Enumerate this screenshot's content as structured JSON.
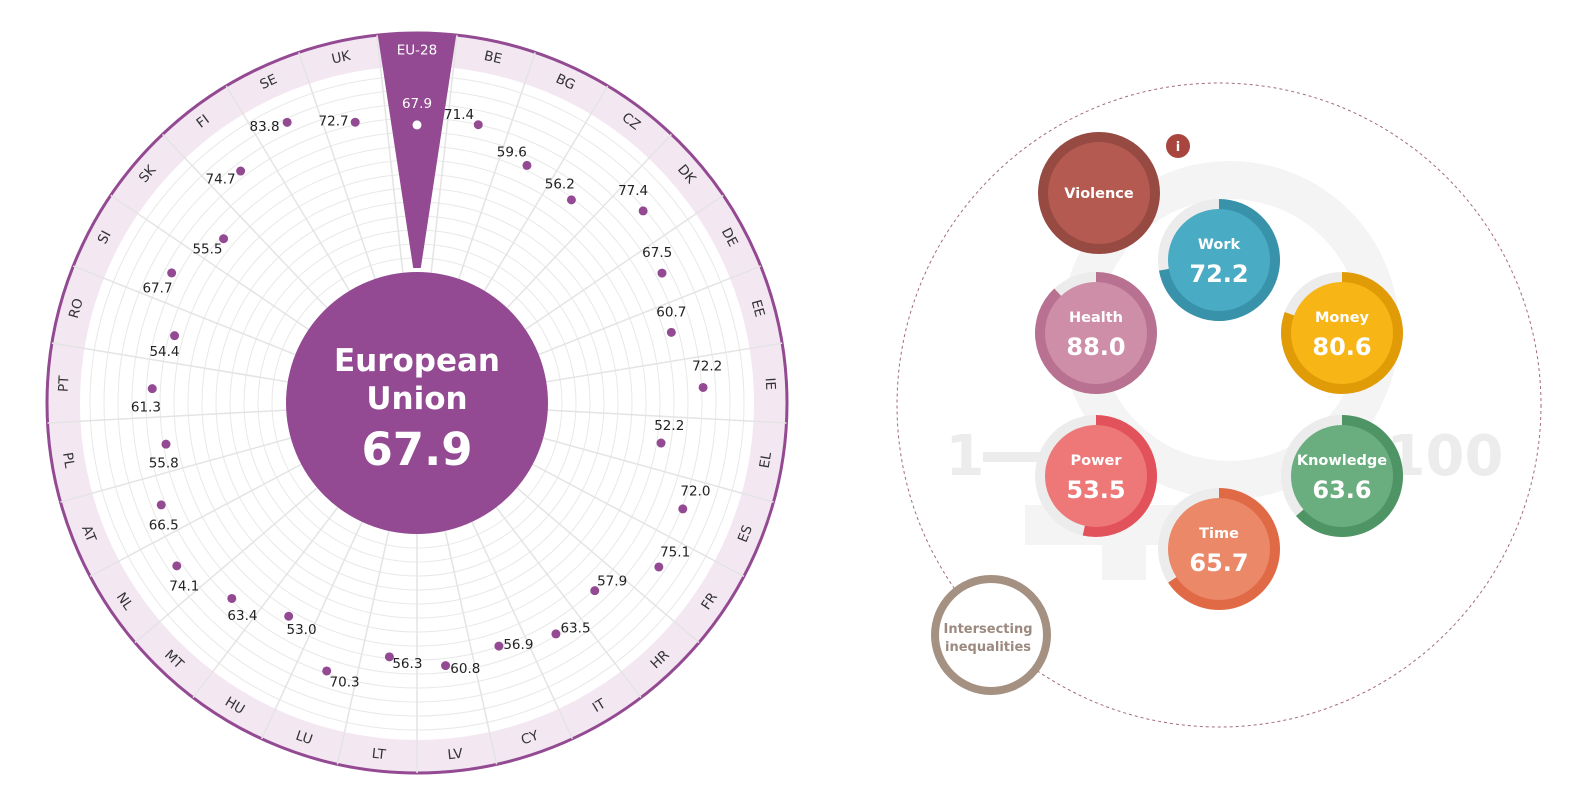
{
  "chart_data": {
    "type": "radial-bar",
    "scale": [
      1,
      100
    ],
    "highlight": {
      "label": "EU-28",
      "value": "67.9",
      "value_num": 67.9
    },
    "center": {
      "title_lines": [
        "European",
        "Union"
      ],
      "value": "67.9"
    },
    "countries": [
      {
        "code": "BE",
        "value": "71.4",
        "value_num": 71.4
      },
      {
        "code": "BG",
        "value": "59.6",
        "value_num": 59.6
      },
      {
        "code": "CZ",
        "value": "56.2",
        "value_num": 56.2
      },
      {
        "code": "DK",
        "value": "77.4",
        "value_num": 77.4
      },
      {
        "code": "DE",
        "value": "67.5",
        "value_num": 67.5
      },
      {
        "code": "EE",
        "value": "60.7",
        "value_num": 60.7
      },
      {
        "code": "IE",
        "value": "72.2",
        "value_num": 72.2
      },
      {
        "code": "EL",
        "value": "52.2",
        "value_num": 52.2
      },
      {
        "code": "ES",
        "value": "72.0",
        "value_num": 72.0
      },
      {
        "code": "FR",
        "value": "75.1",
        "value_num": 75.1
      },
      {
        "code": "HR",
        "value": "57.9",
        "value_num": 57.9
      },
      {
        "code": "IT",
        "value": "63.5",
        "value_num": 63.5
      },
      {
        "code": "CY",
        "value": "56.9",
        "value_num": 56.9
      },
      {
        "code": "LV",
        "value": "60.8",
        "value_num": 60.8
      },
      {
        "code": "LT",
        "value": "56.3",
        "value_num": 56.3
      },
      {
        "code": "LU",
        "value": "70.3",
        "value_num": 70.3
      },
      {
        "code": "HU",
        "value": "53.0",
        "value_num": 53.0
      },
      {
        "code": "MT",
        "value": "63.4",
        "value_num": 63.4
      },
      {
        "code": "NL",
        "value": "74.1",
        "value_num": 74.1
      },
      {
        "code": "AT",
        "value": "66.5",
        "value_num": 66.5
      },
      {
        "code": "PL",
        "value": "55.8",
        "value_num": 55.8
      },
      {
        "code": "PT",
        "value": "61.3",
        "value_num": 61.3
      },
      {
        "code": "RO",
        "value": "54.4",
        "value_num": 54.4
      },
      {
        "code": "SI",
        "value": "67.7",
        "value_num": 67.7
      },
      {
        "code": "SK",
        "value": "55.5",
        "value_num": 55.5
      },
      {
        "code": "FI",
        "value": "74.7",
        "value_num": 74.7
      },
      {
        "code": "SE",
        "value": "83.8",
        "value_num": 83.8
      },
      {
        "code": "UK",
        "value": "72.7",
        "value_num": 72.7
      }
    ],
    "domains": [
      {
        "key": "violence",
        "name": "Violence",
        "value": "",
        "value_num": null,
        "color": "#b45a50",
        "ring": "#974a42"
      },
      {
        "key": "work",
        "name": "Work",
        "value": "72.2",
        "value_num": 72.2,
        "color": "#4aabc4",
        "ring": "#3892aa"
      },
      {
        "key": "health",
        "name": "Health",
        "value": "88.0",
        "value_num": 88.0,
        "color": "#ce8ea8",
        "ring": "#b87190"
      },
      {
        "key": "money",
        "name": "Money",
        "value": "80.6",
        "value_num": 80.6,
        "color": "#f7b516",
        "ring": "#e09b06"
      },
      {
        "key": "power",
        "name": "Power",
        "value": "53.5",
        "value_num": 53.5,
        "color": "#ee7878",
        "ring": "#e2525a"
      },
      {
        "key": "knowledge",
        "name": "Knowledge",
        "value": "63.6",
        "value_num": 63.6,
        "color": "#6aad7e",
        "ring": "#4f9464"
      },
      {
        "key": "time",
        "name": "Time",
        "value": "65.7",
        "value_num": 65.7,
        "color": "#ea8868",
        "ring": "#e06a45"
      }
    ],
    "scale_min_label": "1",
    "scale_max_label": "100",
    "intersecting": [
      "Intersecting",
      "inequalities"
    ],
    "info_icon": "i"
  },
  "colors": {
    "accent": "#934a92",
    "ring_band": "#f3e7f2",
    "grid": "#e8e8e8",
    "dot": "#934a92",
    "intersecting_ring": "#a59182"
  },
  "icons": [
    "info-icon"
  ]
}
